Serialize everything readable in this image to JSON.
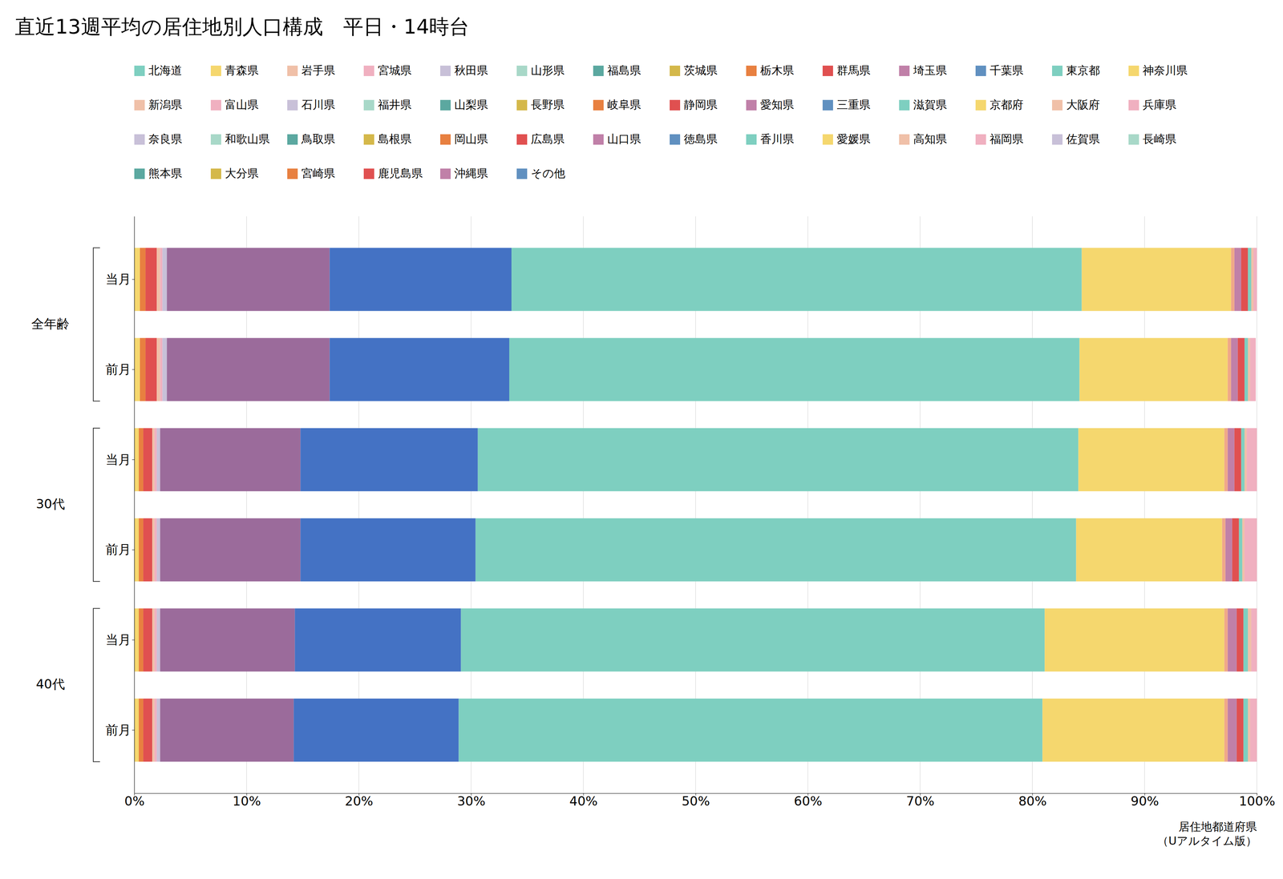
{
  "chart_data": {
    "type": "bar",
    "title": "直近13週平均の居住地別人口構成　平日・14時台",
    "orientation": "horizontal",
    "stacked": true,
    "grid": true,
    "categories": [
      "当月",
      "前月",
      "当月",
      "前月",
      "当月",
      "前月"
    ],
    "groups": [
      "全年齢",
      "30代",
      "40代"
    ],
    "xlabel": "居住地都道府県\n（Uアルタイム版）",
    "xlim": [
      0,
      1.0
    ],
    "xticks": [
      {
        "value": 0.0,
        "label": "0%"
      },
      {
        "value": 0.1,
        "label": "10%"
      },
      {
        "value": 0.2,
        "label": "20%"
      },
      {
        "value": 0.3,
        "label": "30%"
      },
      {
        "value": 0.4,
        "label": "40%"
      },
      {
        "value": 0.5,
        "label": "50%"
      },
      {
        "value": 0.6,
        "label": "60%"
      },
      {
        "value": 0.7,
        "label": "70%"
      },
      {
        "value": 0.8,
        "label": "80%"
      },
      {
        "value": 0.9,
        "label": "90%"
      },
      {
        "value": 1.0,
        "label": "100%"
      }
    ],
    "series": [
      {
        "color": "#F5D76E",
        "values": [
          0.005,
          0.005,
          0.004,
          0.004,
          0.004,
          0.004
        ]
      },
      {
        "color": "#E88040",
        "values": [
          0.005,
          0.005,
          0.004,
          0.004,
          0.004,
          0.004
        ]
      },
      {
        "color": "#E05050",
        "values": [
          0.01,
          0.01,
          0.008,
          0.008,
          0.008,
          0.008
        ]
      },
      {
        "color": "#F0C0A8",
        "values": [
          0.003,
          0.003,
          0.002,
          0.002,
          0.002,
          0.002
        ]
      },
      {
        "color": "#F0B0C0",
        "values": [
          0.002,
          0.002,
          0.002,
          0.002,
          0.002,
          0.002
        ]
      },
      {
        "color": "#C8C0D8",
        "values": [
          0.004,
          0.004,
          0.003,
          0.003,
          0.003,
          0.003
        ]
      },
      {
        "color": "#9B6B9B",
        "values": [
          0.145,
          0.145,
          0.125,
          0.125,
          0.12,
          0.119
        ]
      },
      {
        "color": "#4472C4",
        "values": [
          0.162,
          0.16,
          0.158,
          0.156,
          0.148,
          0.147
        ]
      },
      {
        "color": "#7ECFC0",
        "values": [
          0.508,
          0.508,
          0.535,
          0.535,
          0.52,
          0.52
        ]
      },
      {
        "color": "#F5D76E",
        "values": [
          0.133,
          0.132,
          0.13,
          0.13,
          0.16,
          0.162
        ]
      },
      {
        "color": "#F0A888",
        "values": [
          0.003,
          0.003,
          0.003,
          0.003,
          0.003,
          0.003
        ]
      },
      {
        "color": "#C080A8",
        "values": [
          0.006,
          0.006,
          0.006,
          0.006,
          0.008,
          0.008
        ]
      },
      {
        "color": "#E05050",
        "values": [
          0.006,
          0.006,
          0.006,
          0.006,
          0.006,
          0.006
        ]
      },
      {
        "color": "#7ECFC0",
        "values": [
          0.003,
          0.003,
          0.003,
          0.003,
          0.004,
          0.004
        ]
      },
      {
        "color": "#F0C0A8",
        "values": [
          0.002,
          0.002,
          0.002,
          0.002,
          0.003,
          0.002
        ]
      },
      {
        "color": "#F0B0C0",
        "values": [
          0.003,
          0.005,
          0.009,
          0.011,
          0.005,
          0.006
        ]
      }
    ],
    "legend_rows": [
      [
        {
          "label": "北海道",
          "color": "#7ECFC0"
        },
        {
          "label": "青森県",
          "color": "#F5D76E"
        },
        {
          "label": "岩手県",
          "color": "#F0C0A8"
        },
        {
          "label": "宮城県",
          "color": "#F0B0C0"
        },
        {
          "label": "秋田県",
          "color": "#C8C0D8"
        },
        {
          "label": "山形県",
          "color": "#A8D8C8"
        },
        {
          "label": "福島県",
          "color": "#5BA8A0"
        },
        {
          "label": "茨城県",
          "color": "#D4B84A"
        },
        {
          "label": "栃木県",
          "color": "#E88040"
        },
        {
          "label": "群馬県",
          "color": "#E05050"
        },
        {
          "label": "埼玉県",
          "color": "#C080A8"
        },
        {
          "label": "千葉県",
          "color": "#6090C0"
        },
        {
          "label": "東京都",
          "color": "#7ECFC0"
        },
        {
          "label": "神奈川県",
          "color": "#F5D76E"
        }
      ],
      [
        {
          "label": "新潟県",
          "color": "#F0C0A8"
        },
        {
          "label": "富山県",
          "color": "#F0B0C0"
        },
        {
          "label": "石川県",
          "color": "#C8C0D8"
        },
        {
          "label": "福井県",
          "color": "#A8D8C8"
        },
        {
          "label": "山梨県",
          "color": "#5BA8A0"
        },
        {
          "label": "長野県",
          "color": "#D4B84A"
        },
        {
          "label": "岐阜県",
          "color": "#E88040"
        },
        {
          "label": "静岡県",
          "color": "#E05050"
        },
        {
          "label": "愛知県",
          "color": "#C080A8"
        },
        {
          "label": "三重県",
          "color": "#6090C0"
        },
        {
          "label": "滋賀県",
          "color": "#7ECFC0"
        },
        {
          "label": "京都府",
          "color": "#F5D76E"
        },
        {
          "label": "大阪府",
          "color": "#F0C0A8"
        },
        {
          "label": "兵庫県",
          "color": "#F0B0C0"
        }
      ],
      [
        {
          "label": "奈良県",
          "color": "#C8C0D8"
        },
        {
          "label": "和歌山県",
          "color": "#A8D8C8"
        },
        {
          "label": "鳥取県",
          "color": "#5BA8A0"
        },
        {
          "label": "島根県",
          "color": "#D4B84A"
        },
        {
          "label": "岡山県",
          "color": "#E88040"
        },
        {
          "label": "広島県",
          "color": "#E05050"
        },
        {
          "label": "山口県",
          "color": "#C080A8"
        },
        {
          "label": "徳島県",
          "color": "#6090C0"
        },
        {
          "label": "香川県",
          "color": "#7ECFC0"
        },
        {
          "label": "愛媛県",
          "color": "#F5D76E"
        },
        {
          "label": "高知県",
          "color": "#F0C0A8"
        },
        {
          "label": "福岡県",
          "color": "#F0B0C0"
        },
        {
          "label": "佐賀県",
          "color": "#C8C0D8"
        },
        {
          "label": "長崎県",
          "color": "#A8D8C8"
        }
      ],
      [
        {
          "label": "熊本県",
          "color": "#5BA8A0"
        },
        {
          "label": "大分県",
          "color": "#D4B84A"
        },
        {
          "label": "宮崎県",
          "color": "#E88040"
        },
        {
          "label": "鹿児島県",
          "color": "#E05050"
        },
        {
          "label": "沖縄県",
          "color": "#C080A8"
        },
        {
          "label": "その他",
          "color": "#6090C0"
        }
      ]
    ]
  }
}
